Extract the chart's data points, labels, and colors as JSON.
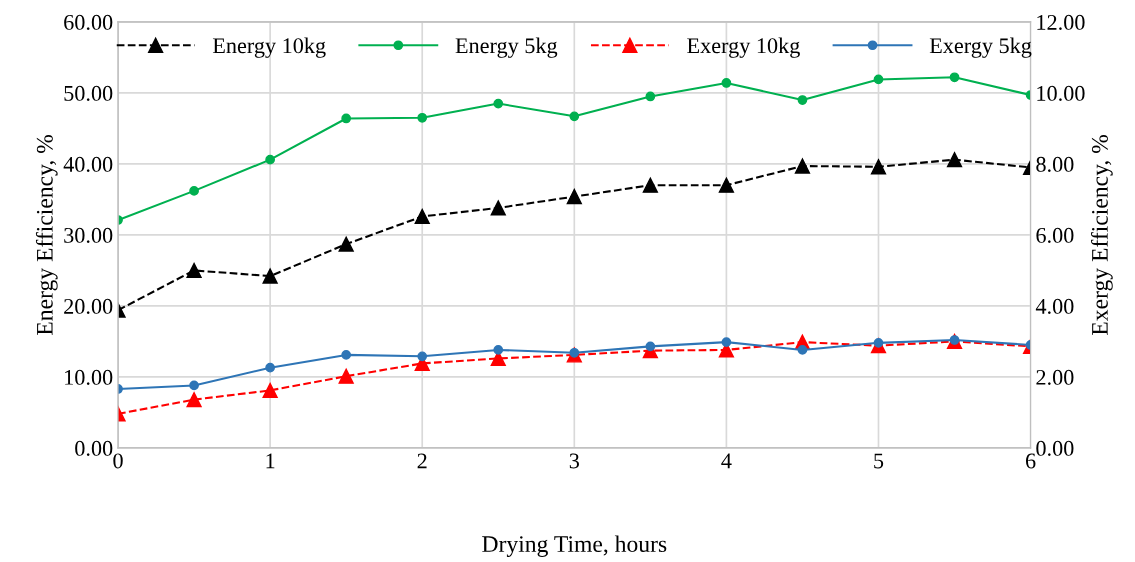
{
  "chart_data": {
    "type": "line",
    "xlabel": "Drying Time, hours",
    "ylabel": "Energy Efficiency, %",
    "y2label": "Exergy Efficiency, %",
    "x": [
      0,
      0.5,
      1,
      1.5,
      2,
      2.5,
      3,
      3.5,
      4,
      4.5,
      5,
      5.5,
      6
    ],
    "series": [
      {
        "name": "Energy 10kg",
        "color": "#000000",
        "marker": "triangle",
        "line_style": "dashed",
        "values": [
          19.4,
          25.0,
          24.2,
          28.7,
          32.6,
          33.8,
          35.4,
          37.0,
          37.0,
          39.7,
          39.6,
          40.6,
          39.5
        ]
      },
      {
        "name": "Energy 5kg",
        "color": "#00b050",
        "marker": "circle",
        "line_style": "solid",
        "values": [
          32.1,
          36.2,
          40.6,
          46.4,
          46.5,
          48.5,
          46.7,
          49.5,
          51.4,
          49.0,
          51.9,
          52.2,
          49.7
        ]
      },
      {
        "name": "Exergy 10kg",
        "color": "#ff0000",
        "marker": "triangle",
        "line_style": "dashed",
        "axis": "y2",
        "values": [
          0.96,
          1.36,
          1.62,
          2.02,
          2.38,
          2.52,
          2.62,
          2.74,
          2.76,
          2.98,
          2.88,
          3.0,
          2.86
        ]
      },
      {
        "name": "Exergy 5kg",
        "color": "#2e75b6",
        "marker": "circle",
        "line_style": "solid",
        "axis": "y2",
        "values": [
          1.66,
          1.76,
          2.26,
          2.62,
          2.58,
          2.76,
          2.68,
          2.86,
          2.98,
          2.76,
          2.96,
          3.04,
          2.9
        ]
      }
    ],
    "xlim": [
      0,
      6
    ],
    "xticks": [
      0,
      1,
      2,
      3,
      4,
      5,
      6
    ],
    "ylim": [
      0,
      60
    ],
    "yticks": [
      {
        "value": 0,
        "label": "0.00"
      },
      {
        "value": 10,
        "label": "10.00"
      },
      {
        "value": 20,
        "label": "20.00"
      },
      {
        "value": 30,
        "label": "30.00"
      },
      {
        "value": 40,
        "label": "40.00"
      },
      {
        "value": 50,
        "label": "50.00"
      },
      {
        "value": 60,
        "label": "60.00"
      }
    ],
    "y2lim": [
      0,
      12
    ],
    "y2ticks": [
      {
        "value": 0,
        "label": "0.00"
      },
      {
        "value": 2,
        "label": "2.00"
      },
      {
        "value": 4,
        "label": "4.00"
      },
      {
        "value": 6,
        "label": "6.00"
      },
      {
        "value": 8,
        "label": "8.00"
      },
      {
        "value": 10,
        "label": "10.00"
      },
      {
        "value": 12,
        "label": "12.00"
      }
    ],
    "grid": true,
    "legend": "top"
  }
}
